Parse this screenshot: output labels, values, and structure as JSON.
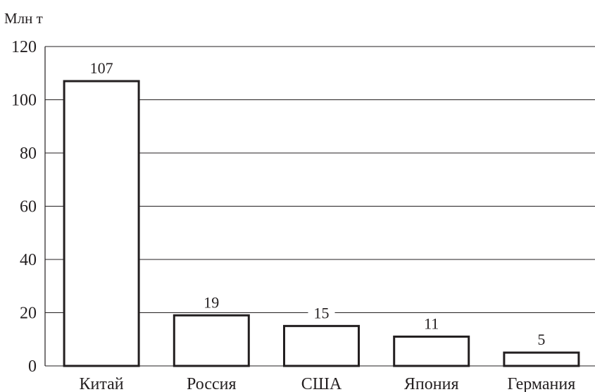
{
  "chart_data": {
    "type": "bar",
    "ylabel": "Млн т",
    "categories": [
      "Китай",
      "Россия",
      "США",
      "Япония",
      "Германия"
    ],
    "values": [
      107,
      19,
      15,
      11,
      5
    ],
    "data_labels": [
      "107",
      "19",
      "15",
      "11",
      "5"
    ],
    "ylim": [
      0,
      120
    ],
    "yticks": [
      0,
      20,
      40,
      60,
      80,
      100,
      120
    ],
    "grid": true,
    "colors": {
      "bar_fill": "#ffffff",
      "bar_stroke": "#231f20",
      "text": "#231f20"
    }
  }
}
